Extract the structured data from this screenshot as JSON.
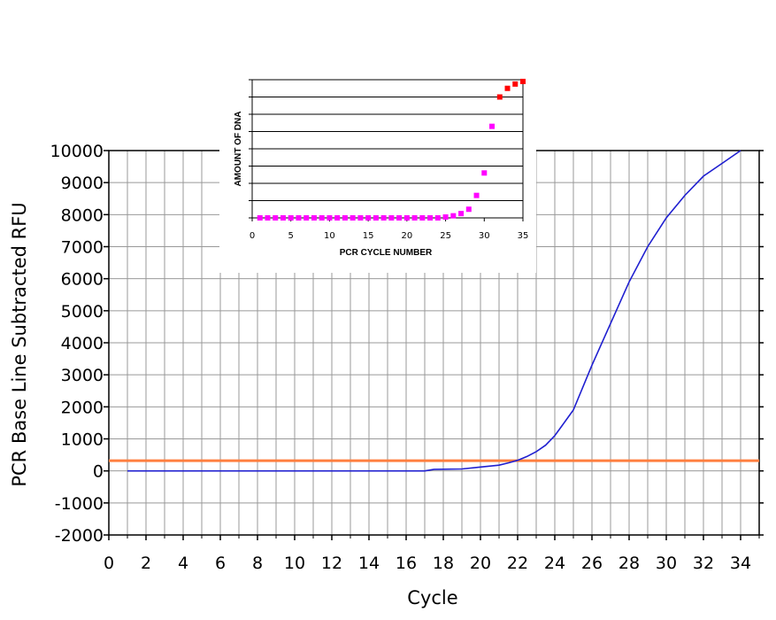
{
  "chart_data": [
    {
      "type": "line",
      "title": "",
      "xlabel": "Cycle",
      "ylabel": "PCR Base Line Subtracted RFU",
      "xlim": [
        0,
        35
      ],
      "ylim": [
        -2000,
        10000
      ],
      "xticks": [
        "0",
        "2",
        "4",
        "6",
        "8",
        "10",
        "12",
        "14",
        "16",
        "18",
        "20",
        "22",
        "24",
        "26",
        "28",
        "30",
        "32",
        "34"
      ],
      "yticks": [
        "-2000",
        "-1000",
        "0",
        "1000",
        "2000",
        "3000",
        "4000",
        "5000",
        "6000",
        "7000",
        "8000",
        "9000",
        "10000"
      ],
      "grid": true,
      "colors": {
        "curve": "#1f1fd0",
        "threshold": "#ff7f3f",
        "grid": "#999999"
      },
      "series": [
        {
          "x": [
            1,
            5,
            10,
            15,
            17,
            17.5,
            19,
            20,
            21,
            21.5,
            22,
            22.5,
            23,
            23.5,
            24,
            25,
            26,
            27,
            28,
            29,
            30,
            31,
            32,
            33,
            34
          ],
          "y": [
            0,
            0,
            0,
            0,
            0,
            50,
            60,
            120,
            180,
            250,
            330,
            450,
            600,
            800,
            1100,
            1900,
            3300,
            4600,
            5900,
            7000,
            7900,
            8600,
            9200,
            9600,
            10000
          ]
        }
      ],
      "threshold": 320
    },
    {
      "type": "scatter",
      "title": "",
      "xlabel": "PCR CYCLE NUMBER",
      "ylabel": "AMOUNT OF DNA",
      "xlim": [
        0,
        35
      ],
      "xticks": [
        "0",
        "5",
        "10",
        "15",
        "20",
        "25",
        "30",
        "35"
      ],
      "ylim": [
        0,
        8
      ],
      "grid": true,
      "colors": {
        "early": "#ff00ff",
        "late": "#ff0000"
      },
      "points": {
        "x": [
          1,
          2,
          3,
          4,
          5,
          6,
          7,
          8,
          9,
          10,
          11,
          12,
          13,
          14,
          15,
          16,
          17,
          18,
          19,
          20,
          21,
          22,
          23,
          24,
          25,
          26,
          27,
          28,
          29,
          30,
          31,
          32,
          33,
          34,
          35
        ],
        "y": [
          0,
          0,
          0,
          0,
          0,
          0,
          0,
          0,
          0,
          0,
          0,
          0,
          0,
          0,
          0,
          0,
          0,
          0,
          0,
          0,
          0,
          0,
          0,
          0,
          0.05,
          0.12,
          0.25,
          0.5,
          1.3,
          2.6,
          5.3,
          7.0,
          7.5,
          7.75,
          7.9
        ],
        "late_from_index": 31
      }
    }
  ]
}
